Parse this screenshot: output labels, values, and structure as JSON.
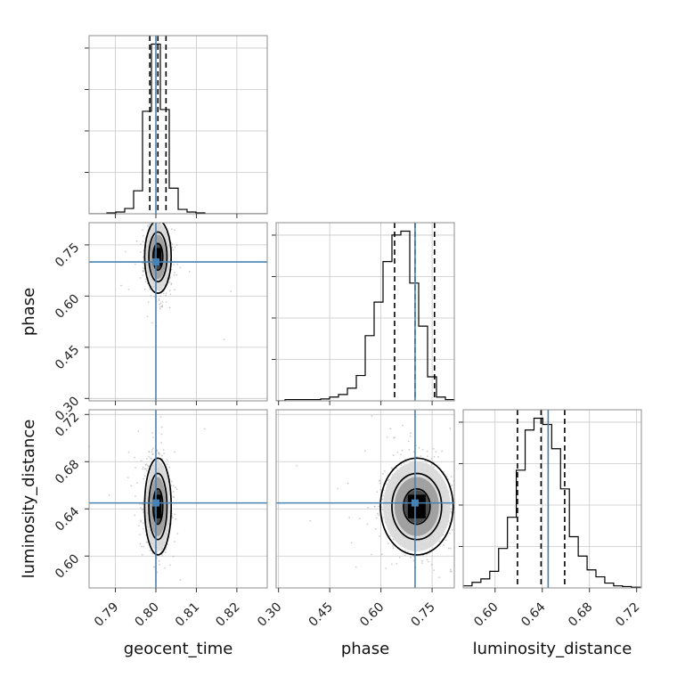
{
  "chart_data": {
    "type": "corner",
    "parameters": [
      "geocent_time",
      "phase",
      "luminosity_distance"
    ],
    "truth_color": "#4682b4",
    "truths": {
      "geocent_time": 0.8,
      "phase": 0.7,
      "luminosity_distance": 0.645
    },
    "ranges": {
      "geocent_time": [
        0.7835,
        0.8275
      ],
      "phase": [
        0.293,
        0.815
      ],
      "luminosity_distance": [
        0.573,
        0.724
      ]
    },
    "ticks": {
      "geocent_time": [
        0.79,
        0.8,
        0.81,
        0.82
      ],
      "phase": [
        0.3,
        0.45,
        0.6,
        0.75
      ],
      "luminosity_distance": [
        0.6,
        0.64,
        0.68,
        0.72
      ]
    },
    "tick_labels": {
      "geocent_time": [
        "0.79",
        "0.80",
        "0.81",
        "0.82"
      ],
      "phase": [
        "0.30",
        "0.45",
        "0.60",
        "0.75"
      ],
      "luminosity_distance": [
        "0.60",
        "0.64",
        "0.68",
        "0.72"
      ]
    },
    "quantiles": {
      "geocent_time": [
        0.7985,
        0.8005,
        0.8025
      ],
      "phase": [
        0.64,
        0.7,
        0.757
      ],
      "luminosity_distance": [
        0.619,
        0.639,
        0.659
      ]
    },
    "histograms": {
      "geocent_time": {
        "edges": [
          0.7835,
          0.7857,
          0.7879,
          0.7901,
          0.7923,
          0.7945,
          0.7967,
          0.7989,
          0.8011,
          0.8033,
          0.8055,
          0.8077,
          0.8099,
          0.8121,
          0.8143,
          0.8165,
          0.8187,
          0.8209,
          0.8231,
          0.8253,
          0.8275
        ],
        "counts": [
          0,
          0,
          1,
          2,
          6,
          26,
          116,
          192,
          118,
          29,
          5,
          2,
          1,
          0,
          0,
          0,
          0,
          0,
          0,
          0
        ]
      },
      "phase": {
        "edges": [
          0.293,
          0.3191,
          0.3452,
          0.3713,
          0.3974,
          0.4235,
          0.4496,
          0.4757,
          0.5018,
          0.5279,
          0.554,
          0.5801,
          0.6062,
          0.6323,
          0.6584,
          0.6845,
          0.7106,
          0.7367,
          0.7628,
          0.7889,
          0.815
        ],
        "counts": [
          0,
          2,
          2,
          2,
          2,
          3,
          6,
          10,
          20,
          40,
          103,
          156,
          220,
          262,
          268,
          186,
          118,
          38,
          6,
          2
        ]
      },
      "luminosity_distance": {
        "edges": [
          0.573,
          0.5805,
          0.588,
          0.5955,
          0.603,
          0.6105,
          0.618,
          0.6255,
          0.633,
          0.6405,
          0.648,
          0.6555,
          0.663,
          0.6705,
          0.678,
          0.6855,
          0.693,
          0.7005,
          0.708,
          0.7155,
          0.7235
        ],
        "counts": [
          3,
          8,
          13,
          24,
          57,
          102,
          170,
          228,
          245,
          236,
          201,
          143,
          74,
          46,
          26,
          16,
          7,
          3,
          2,
          1
        ]
      }
    },
    "pair_summaries": {
      "phase_vs_geocent_time": {
        "x_center": 0.8005,
        "x_sd": 0.0016,
        "y_center": 0.715,
        "y_sd": 0.052
      },
      "luminosity_distance_vs_geocent_time": {
        "x_center": 0.8005,
        "x_sd": 0.0016,
        "y_center": 0.642,
        "y_sd": 0.02
      },
      "luminosity_distance_vs_phase": {
        "x_center": 0.705,
        "x_sd": 0.052,
        "y_center": 0.642,
        "y_sd": 0.02
      }
    },
    "grid": true
  }
}
